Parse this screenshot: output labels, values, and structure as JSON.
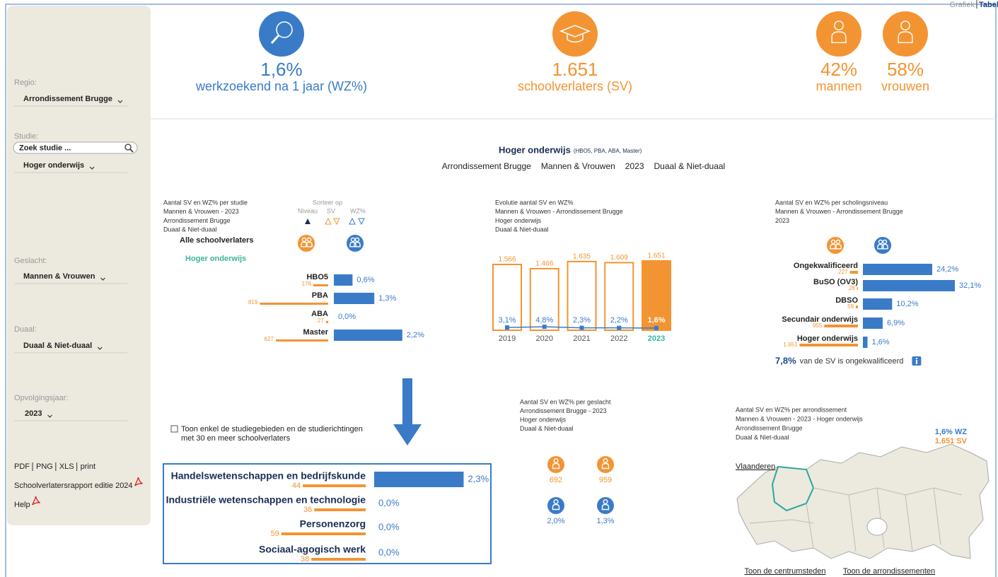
{
  "sidebar": {
    "filters": [
      {
        "label": "Regio:",
        "value": "Arrondissement Brugge"
      },
      {
        "label": "Studie:",
        "value": "Hoger onderwijs"
      },
      {
        "label": "Geslacht:",
        "value": "Mannen & Vrouwen"
      },
      {
        "label": "Duaal:",
        "value": "Duaal & Niet-duaal"
      },
      {
        "label": "Opvolgingsjaar:",
        "value": "2023"
      }
    ],
    "study_search": "Zoek studie ...",
    "links": [
      "PDF",
      "PNG",
      "XLS",
      "print"
    ],
    "report": "Schoolverlatersrapport editie 2024",
    "help": "Help"
  },
  "view_toggle": [
    "Grafiek",
    "Tabel"
  ],
  "kpis": [
    {
      "value": "1,6%",
      "caption": "werkzoekend na 1 jaar (WZ%)"
    },
    {
      "value": "1.651",
      "caption": "schoolverlaters (SV)"
    },
    {
      "value": "42%",
      "caption": "mannen"
    },
    {
      "value": "58%",
      "caption": "vrouwen"
    }
  ],
  "heading": {
    "title": "Hoger onderwijs",
    "note": "(HBO5, PBA, ABA, Master)",
    "filters": [
      "Arrondissement Brugge",
      "Mannen & Vrouwen",
      "2023",
      "Duaal & Niet-duaal"
    ]
  },
  "per_study": {
    "title_lines": [
      "Aantal SV en WZ% per studie",
      "Mannen & Vrouwen - 2023",
      "Arrondissement Brugge",
      "Duaal & Niet-duaal"
    ],
    "sort": {
      "title": "Sorteer op",
      "options": [
        "Niveau",
        "SV",
        "WZ%"
      ]
    },
    "all": "Alle schoolverlaters",
    "group": "Hoger onderwijs",
    "rows": [
      {
        "name": "HBO5",
        "sv": 178,
        "wz": 0.6,
        "wz_label": "0,6%"
      },
      {
        "name": "PBA",
        "sv": 819,
        "wz": 1.3,
        "wz_label": "1,3%"
      },
      {
        "name": "ABA",
        "sv": 27,
        "wz": 0,
        "wz_label": "0,0%"
      },
      {
        "name": "Master",
        "sv": 627,
        "wz": 2.2,
        "wz_label": "2,2%"
      }
    ]
  },
  "evolution": {
    "title_lines": [
      "Evolutie aantal SV en WZ%",
      "Mannen & Vrouwen - Arrondissement Brugge",
      "Hoger onderwijs",
      "Duaal & Niet-duaal"
    ],
    "years": [
      "2019",
      "2020",
      "2021",
      "2022",
      "2023"
    ],
    "sv": [
      1566,
      1466,
      1635,
      1609,
      1651
    ],
    "sv_labels": [
      "1.566",
      "1.466",
      "1.635",
      "1.609",
      "1.651"
    ],
    "wz": [
      3.1,
      4.8,
      2.3,
      2.2,
      1.6
    ],
    "wz_labels": [
      "3,1%",
      "4,8%",
      "2,3%",
      "2,2%",
      "1,6%"
    ]
  },
  "per_level": {
    "title_lines": [
      "Aantal SV en WZ% per scholingsniveau",
      "Mannen & Vrouwen - Arrondissement Brugge",
      "2023"
    ],
    "rows": [
      {
        "name": "Ongekwalificeerd",
        "sv": 227,
        "wz": 24.2,
        "wz_label": "24,2%"
      },
      {
        "name": "BuSO (OV3)",
        "sv": 28,
        "wz": 32.1,
        "wz_label": "32,1%"
      },
      {
        "name": "DBSO",
        "sv": 59,
        "wz": 10.2,
        "wz_label": "10,2%"
      },
      {
        "name": "Secundair onderwijs",
        "sv": 955,
        "wz": 6.9,
        "wz_label": "6,9%"
      },
      {
        "name": "Hoger onderwijs",
        "sv": 1651,
        "sv_label": "1.651",
        "wz": 1.6,
        "wz_label": "1,6%"
      }
    ],
    "note": {
      "value": "7,8%",
      "text": "van de SV is ongekwalificeerd"
    }
  },
  "filter_checkbox": [
    "Toon enkel de studiegebieden en de studierichtingen",
    "met 30 en meer schoolverlaters"
  ],
  "study_areas": {
    "rows": [
      {
        "name": "Handelswetenschappen en bedrijfskunde",
        "sv": 44,
        "wz": 2.3,
        "wz_label": "2,3%"
      },
      {
        "name": "Industriële wetenschappen en technologie",
        "sv": 36,
        "wz": 0,
        "wz_label": "0,0%"
      },
      {
        "name": "Personenzorg",
        "sv": 59,
        "wz": 0,
        "wz_label": "0,0%"
      },
      {
        "name": "Sociaal-agogisch werk",
        "sv": 38,
        "wz": 0,
        "wz_label": "0,0%"
      }
    ]
  },
  "per_gender": {
    "title_lines": [
      "Aantal SV en WZ% per geslacht",
      "Arrondissement Brugge - 2023",
      "Hoger onderwijs",
      "Duaal & Niet-duaal"
    ],
    "men": {
      "sv": 692,
      "wz_label": "2,0%"
    },
    "women": {
      "sv": 959,
      "wz_label": "1,3%"
    }
  },
  "per_district": {
    "title_lines": [
      "Aantal SV en WZ% per arrondissement",
      "Mannen & Vrouwen - 2023 - Hoger onderwijs",
      "Arrondissement Brugge",
      "Duaal & Niet-duaal"
    ],
    "wz": "1,6% WZ",
    "sv": "1.651 SV",
    "map_link": "Vlaanderen",
    "links": [
      "Toon de centrumsteden",
      "Toon de arrondissementen"
    ]
  }
}
